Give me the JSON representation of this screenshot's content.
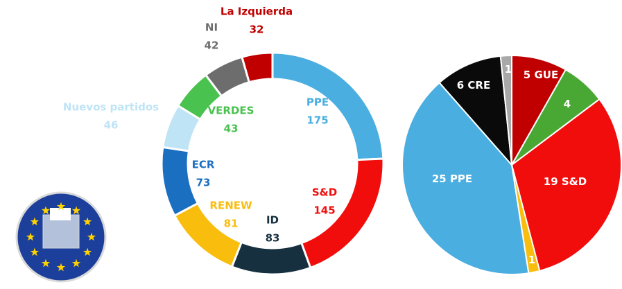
{
  "chart_data": [
    {
      "type": "donut",
      "categories": [
        "PPE",
        "S&D",
        "ID",
        "RENEW",
        "ECR",
        "Nuevos partidos",
        "VERDES",
        "NI",
        "La Izquierda"
      ],
      "values": [
        175,
        145,
        83,
        81,
        73,
        46,
        43,
        42,
        32
      ],
      "colors": [
        "#4aaee0",
        "#f20d0d",
        "#16303f",
        "#f9bd0e",
        "#1a6fc0",
        "#bfe4f6",
        "#49c24f",
        "#6d6d6d",
        "#c00000"
      ]
    },
    {
      "type": "pie",
      "categories": [
        "GUE",
        null,
        "S&D",
        null,
        "PPE",
        "CRE",
        null
      ],
      "values": [
        5,
        4,
        19,
        1,
        25,
        6,
        1
      ],
      "colors": [
        "#c00000",
        "#49a834",
        "#f20d0d",
        "#f9bd0e",
        "#4aaee0",
        "#0a0a0a",
        "#a8a8a8"
      ]
    }
  ]
}
